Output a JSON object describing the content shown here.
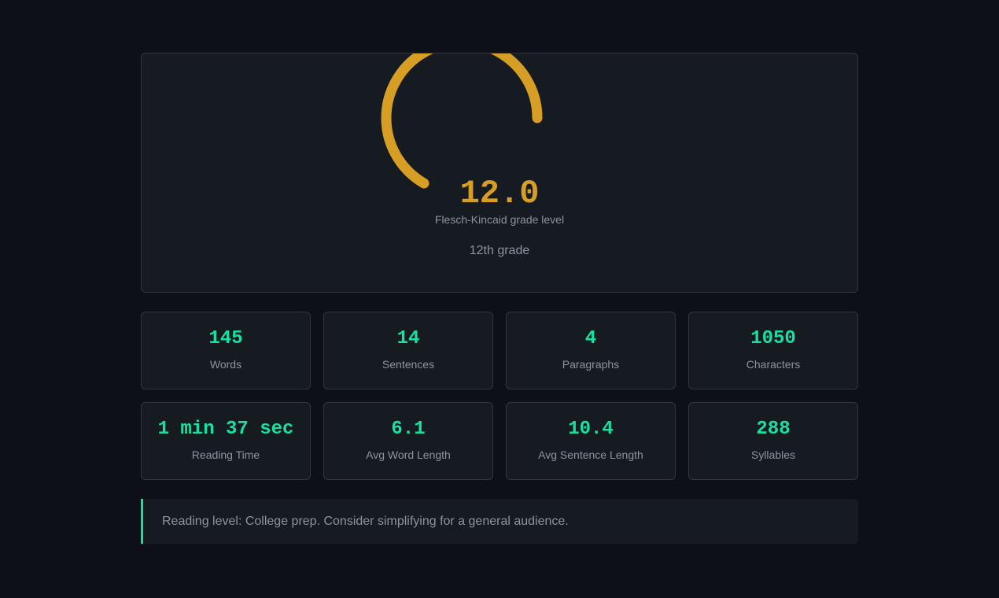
{
  "gauge": {
    "grade_value": "12.0",
    "grade_level": 12.0,
    "caption": "Flesch-Kincaid grade level",
    "grade_text": "12th grade",
    "accent_color": "#d69e24"
  },
  "stats": [
    {
      "value": "145",
      "label": "Words"
    },
    {
      "value": "14",
      "label": "Sentences"
    },
    {
      "value": "4",
      "label": "Paragraphs"
    },
    {
      "value": "1050",
      "label": "Characters"
    },
    {
      "value": "1 min 37 sec",
      "label": "Reading Time"
    },
    {
      "value": "6.1",
      "label": "Avg Word Length"
    },
    {
      "value": "10.4",
      "label": "Avg Sentence Length"
    },
    {
      "value": "288",
      "label": "Syllables"
    }
  ],
  "stat_value_color": "#19e0a0",
  "verdict": {
    "text": "Reading level: College prep. Consider simplifying for a general audience.",
    "accent_color": "#19e0a0"
  }
}
